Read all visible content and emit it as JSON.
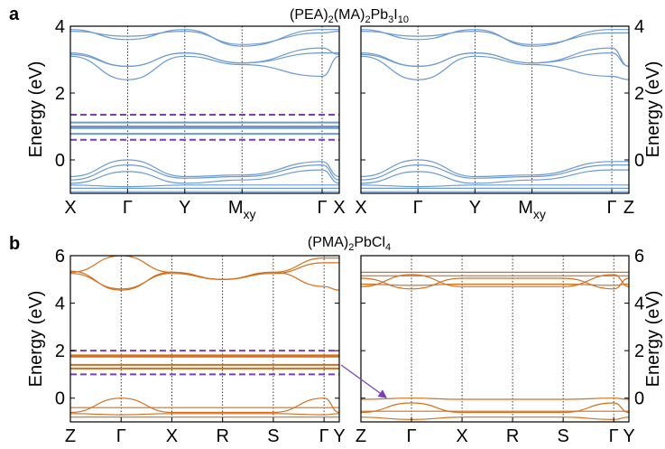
{
  "panels": [
    {
      "letter": "a",
      "title": {
        "parts": [
          {
            "t": "(PEA)"
          },
          {
            "t": "2",
            "sub": true
          },
          {
            "t": "(MA)"
          },
          {
            "t": "2",
            "sub": true
          },
          {
            "t": "Pb"
          },
          {
            "t": "3",
            "sub": true
          },
          {
            "t": "I"
          },
          {
            "t": "10",
            "sub": true
          }
        ]
      },
      "ylabel": "Energy (eV)",
      "color": "#6b9ad1",
      "ylim": [
        -1,
        4
      ],
      "yticks": [
        "4",
        "2",
        "0"
      ],
      "ytick_values": [
        4,
        2,
        0
      ]
    },
    {
      "letter": "b",
      "title": {
        "parts": [
          {
            "t": "(PMA)"
          },
          {
            "t": "2",
            "sub": true
          },
          {
            "t": "PbCl"
          },
          {
            "t": "4",
            "sub": true
          }
        ]
      },
      "ylabel": "Energy (eV)",
      "color": "#d56f1d",
      "ylim": [
        -1,
        6
      ],
      "yticks": [
        "6",
        "4",
        "2",
        "0"
      ],
      "ytick_values": [
        6,
        4,
        2,
        0
      ]
    }
  ],
  "highlight_color": "#7a3fb8",
  "chart_data": [
    {
      "type": "line",
      "panel": "a-left",
      "title": "(PEA)2(MA)2Pb3I10",
      "ylabel": "Energy (eV)",
      "ylim": [
        -1,
        4
      ],
      "kpath": [
        "X",
        "Γ",
        "Y",
        "M",
        "Γ",
        "X"
      ],
      "kpath_labels": [
        {
          "main": "X"
        },
        {
          "main": "Γ"
        },
        {
          "main": "Y"
        },
        {
          "main": "M",
          "sub": "xy"
        },
        {
          "main": "Γ"
        },
        {
          "main": "X"
        }
      ],
      "kpath_segments": [
        1,
        1,
        1,
        1.4,
        0.3
      ],
      "bands": {
        "conduction_bands": [
          {
            "values": [
              3.9,
              3.6,
              3.9,
              3.4,
              3.9,
              3.9
            ]
          },
          {
            "values": [
              3.85,
              3.7,
              3.85,
              3.45,
              3.8,
              3.85
            ]
          },
          {
            "values": [
              3.2,
              2.8,
              3.2,
              2.9,
              3.2,
              3.2
            ]
          },
          {
            "values": [
              3.1,
              2.4,
              3.1,
              2.85,
              2.5,
              3.1
            ]
          },
          {
            "values": [
              3.15,
              2.8,
              3.2,
              2.9,
              3.35,
              3.15
            ]
          }
        ],
        "flat_bands": [
          {
            "values": [
              1.12,
              1.12,
              1.12,
              1.12,
              1.12,
              1.12
            ]
          },
          {
            "values": [
              1.0,
              1.0,
              1.0,
              1.0,
              1.0,
              1.0
            ]
          },
          {
            "values": [
              0.95,
              0.95,
              0.95,
              0.95,
              0.95,
              0.95
            ]
          },
          {
            "values": [
              0.78,
              0.78,
              0.78,
              0.78,
              0.78,
              0.78
            ]
          }
        ],
        "valence_bands": [
          {
            "values": [
              -0.5,
              0.0,
              -0.5,
              -0.45,
              -0.05,
              -0.5
            ]
          },
          {
            "values": [
              -0.6,
              -0.15,
              -0.55,
              -0.5,
              -0.15,
              -0.6
            ]
          },
          {
            "values": [
              -0.7,
              -0.35,
              -0.7,
              -0.6,
              -0.3,
              -0.7
            ]
          },
          {
            "values": [
              -0.75,
              -0.8,
              -0.75,
              -0.75,
              -0.75,
              -0.75
            ]
          },
          {
            "values": [
              -0.85,
              -0.85,
              -0.85,
              -0.85,
              -0.85,
              -0.85
            ]
          },
          {
            "values": [
              -0.95,
              -0.95,
              -0.95,
              -0.95,
              -0.95,
              -0.95
            ]
          }
        ]
      },
      "highlight_range": [
        0.6,
        1.35
      ]
    },
    {
      "type": "line",
      "panel": "a-right",
      "ylim": [
        -1,
        4
      ],
      "kpath": [
        "X",
        "Γ",
        "Y",
        "M",
        "Γ",
        "Z"
      ],
      "kpath_labels": [
        {
          "main": "X"
        },
        {
          "main": "Γ"
        },
        {
          "main": "Y"
        },
        {
          "main": "M",
          "sub": "xy"
        },
        {
          "main": "Γ"
        },
        {
          "main": "Z"
        }
      ],
      "kpath_segments": [
        1,
        1,
        1,
        1.4,
        0.3
      ],
      "bands": {
        "conduction_bands": [
          {
            "values": [
              3.9,
              3.6,
              3.9,
              3.4,
              3.9,
              3.9
            ]
          },
          {
            "values": [
              3.85,
              3.7,
              3.85,
              3.45,
              3.8,
              3.8
            ]
          },
          {
            "values": [
              3.2,
              2.8,
              3.2,
              2.9,
              3.2,
              2.8
            ]
          },
          {
            "values": [
              3.1,
              2.4,
              3.1,
              2.85,
              2.5,
              2.4
            ]
          },
          {
            "values": [
              3.15,
              2.8,
              3.2,
              2.9,
              3.35,
              2.8
            ]
          }
        ],
        "valence_bands": [
          {
            "values": [
              -0.5,
              0.0,
              -0.5,
              -0.45,
              -0.05,
              -0.05
            ]
          },
          {
            "values": [
              -0.6,
              -0.15,
              -0.55,
              -0.5,
              -0.15,
              -0.15
            ]
          },
          {
            "values": [
              -0.7,
              -0.35,
              -0.7,
              -0.6,
              -0.3,
              -0.3
            ]
          },
          {
            "values": [
              -0.75,
              -0.8,
              -0.75,
              -0.75,
              -0.75,
              -0.75
            ]
          },
          {
            "values": [
              -0.85,
              -0.85,
              -0.85,
              -0.85,
              -0.85,
              -0.85
            ]
          },
          {
            "values": [
              -0.95,
              -0.95,
              -0.95,
              -0.95,
              -0.95,
              -0.95
            ]
          }
        ]
      }
    },
    {
      "type": "line",
      "panel": "b-left",
      "title": "(PMA)2PbCl4",
      "ylabel": "Energy (eV)",
      "ylim": [
        -1,
        6
      ],
      "kpath": [
        "Z",
        "Γ",
        "X",
        "R",
        "S",
        "Γ",
        "Y"
      ],
      "kpath_labels": [
        {
          "main": "Z"
        },
        {
          "main": "Γ"
        },
        {
          "main": "X"
        },
        {
          "main": "R"
        },
        {
          "main": "S"
        },
        {
          "main": "Γ"
        },
        {
          "main": "Y"
        }
      ],
      "kpath_segments": [
        1,
        1,
        1,
        1,
        1,
        0.3
      ],
      "bands": {
        "conduction_bands": [
          {
            "values": [
              5.3,
              6.0,
              5.3,
              5.0,
              5.3,
              5.9,
              5.9
            ]
          },
          {
            "values": [
              5.25,
              4.6,
              5.25,
              5.0,
              5.25,
              5.7,
              5.7
            ]
          },
          {
            "values": [
              5.35,
              4.55,
              5.3,
              5.0,
              5.3,
              4.7,
              4.55
            ]
          }
        ],
        "flat_bands": [
          {
            "values": [
              1.8,
              1.8,
              1.8,
              1.8,
              1.8,
              1.8,
              1.8
            ]
          },
          {
            "values": [
              1.75,
              1.75,
              1.75,
              1.75,
              1.75,
              1.75,
              1.75
            ]
          },
          {
            "values": [
              1.4,
              1.4,
              1.4,
              1.4,
              1.4,
              1.4,
              1.4
            ]
          },
          {
            "values": [
              1.25,
              1.25,
              1.25,
              1.25,
              1.25,
              1.25,
              1.25
            ]
          }
        ],
        "valence_bands": [
          {
            "values": [
              -0.6,
              0.0,
              -0.6,
              -0.6,
              -0.6,
              0.0,
              -0.6
            ]
          },
          {
            "values": [
              -0.4,
              -0.4,
              -0.4,
              -0.4,
              -0.4,
              -0.4,
              -0.4
            ]
          },
          {
            "values": [
              -0.65,
              -0.7,
              -0.65,
              -0.65,
              -0.65,
              -0.7,
              -0.65
            ]
          },
          {
            "values": [
              -0.8,
              -0.8,
              -0.8,
              -0.8,
              -0.8,
              -0.8,
              -0.8
            ]
          }
        ]
      },
      "highlight_range": [
        1.0,
        2.0
      ]
    },
    {
      "type": "line",
      "panel": "b-right",
      "ylim": [
        -1,
        6
      ],
      "kpath": [
        "Z",
        "Γ",
        "X",
        "R",
        "S",
        "Γ",
        "Y"
      ],
      "kpath_labels": [
        {
          "main": "Z"
        },
        {
          "main": "Γ"
        },
        {
          "main": "X"
        },
        {
          "main": "R"
        },
        {
          "main": "S"
        },
        {
          "main": "Γ"
        },
        {
          "main": "Y"
        }
      ],
      "kpath_segments": [
        1,
        1,
        1,
        1,
        1,
        0.3
      ],
      "bands": {
        "conduction_bands": [
          {
            "values": [
              5.3,
              5.3,
              5.3,
              5.3,
              5.3,
              5.3,
              5.3
            ]
          },
          {
            "values": [
              5.15,
              5.15,
              5.15,
              5.15,
              5.15,
              5.15,
              5.15
            ]
          },
          {
            "values": [
              4.8,
              4.75,
              4.8,
              4.8,
              4.8,
              4.75,
              4.8
            ]
          },
          {
            "values": [
              4.7,
              5.2,
              4.7,
              4.7,
              4.7,
              5.2,
              4.7
            ]
          },
          {
            "values": [
              5.05,
              4.6,
              5.05,
              5.05,
              5.05,
              4.6,
              5.05
            ]
          }
        ],
        "valence_bands": [
          {
            "values": [
              -0.05,
              0.0,
              -0.05,
              -0.05,
              -0.05,
              0.0,
              -0.05
            ]
          },
          {
            "values": [
              -0.55,
              -0.55,
              -0.55,
              -0.55,
              -0.55,
              -0.55,
              -0.55
            ]
          },
          {
            "values": [
              -0.6,
              -0.2,
              -0.6,
              -0.6,
              -0.6,
              -0.2,
              -0.6
            ]
          },
          {
            "values": [
              -0.8,
              -0.9,
              -0.8,
              -0.8,
              -0.8,
              -0.9,
              -0.8
            ]
          }
        ]
      }
    }
  ]
}
